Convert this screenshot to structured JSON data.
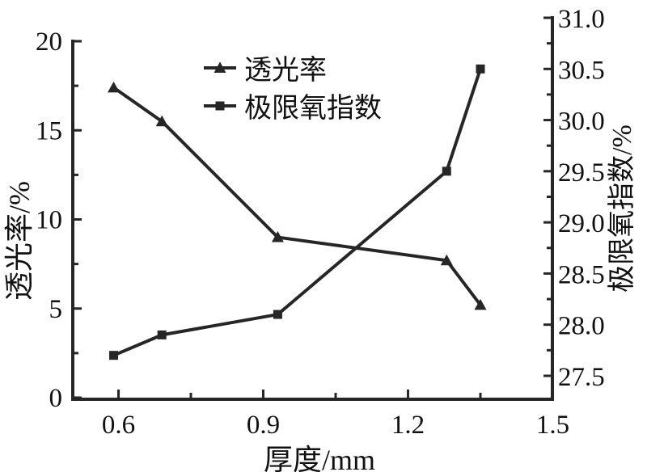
{
  "chart_data": {
    "type": "line",
    "title": "",
    "xlabel": "厚度/mm",
    "ylabel_left": "透光率/%",
    "ylabel_right": "极限氧指数/%",
    "x": [
      0.59,
      0.69,
      0.93,
      1.28,
      1.35
    ],
    "series": [
      {
        "name": "透光率",
        "axis": "left",
        "marker": "triangle",
        "values": [
          17.4,
          15.5,
          9.0,
          7.7,
          5.2
        ]
      },
      {
        "name": "极限氧指数",
        "axis": "right",
        "marker": "square",
        "values": [
          27.7,
          27.9,
          28.1,
          29.5,
          30.5
        ]
      }
    ],
    "axes": {
      "x": {
        "range": [
          0.505,
          1.5
        ],
        "major_ticks": [
          0.6,
          0.9,
          1.2,
          1.5
        ],
        "minor_ticks": [
          0.75,
          1.05,
          1.35
        ],
        "tick_labels": [
          "0.6",
          "0.9",
          "1.2",
          "1.5"
        ]
      },
      "left": {
        "range": [
          0,
          20
        ],
        "major_ticks": [
          0,
          5,
          10,
          15,
          20
        ],
        "minor_ticks": [
          2.5,
          7.5,
          12.5,
          17.5
        ],
        "tick_labels": [
          "0",
          "5",
          "10",
          "15",
          "20"
        ]
      },
      "right": {
        "range": [
          27.5,
          31.0
        ],
        "major_ticks": [
          27.5,
          28.0,
          28.5,
          29.0,
          29.5,
          30.0,
          30.5,
          31.0
        ],
        "minor_ticks": [
          27.75,
          28.25,
          28.75,
          29.25,
          29.75,
          30.25,
          30.75
        ],
        "tick_labels": [
          "27.5",
          "28.0",
          "28.5",
          "29.0",
          "29.5",
          "30.0",
          "30.5",
          "31.0"
        ]
      }
    },
    "legend": {
      "position": "upper-center-left",
      "entries": [
        "透光率",
        "极限氧指数"
      ]
    },
    "style": {
      "line_color": "#262626",
      "text_color": "#111111",
      "background": "#ffffff",
      "grid": false,
      "tick_direction": "in"
    }
  }
}
